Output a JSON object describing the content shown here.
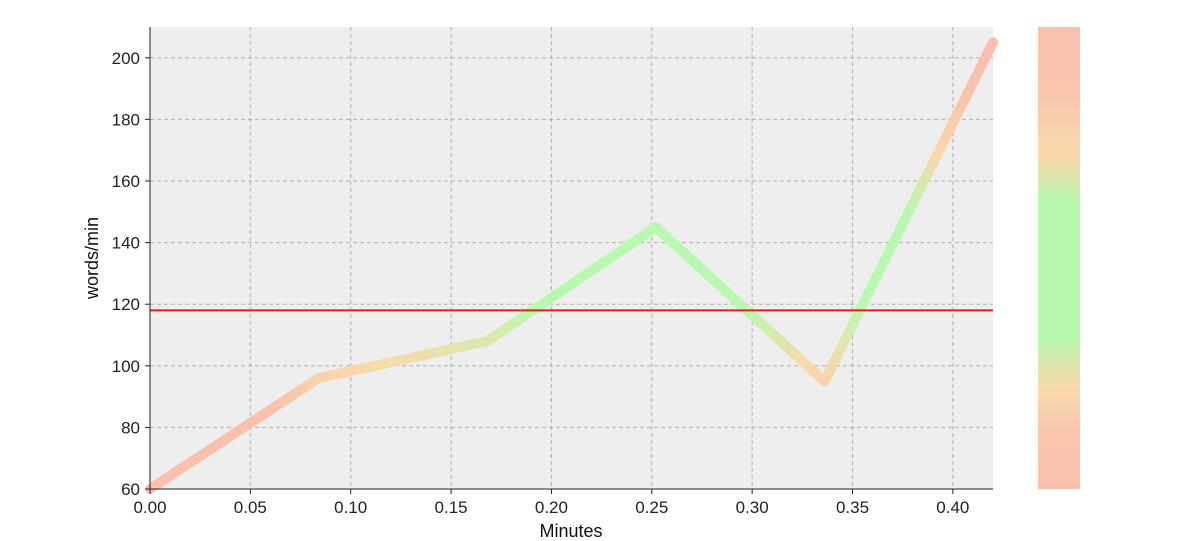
{
  "chart_data": {
    "type": "line",
    "title": "",
    "xlabel": "Minutes",
    "ylabel": "words/min",
    "xlim": [
      0.0,
      0.42
    ],
    "ylim": [
      60,
      210
    ],
    "xticks": [
      0.0,
      0.05,
      0.1,
      0.15,
      0.2,
      0.25,
      0.3,
      0.35,
      0.4
    ],
    "xtick_labels": [
      "0.00",
      "0.05",
      "0.10",
      "0.15",
      "0.20",
      "0.25",
      "0.30",
      "0.35",
      "0.40"
    ],
    "yticks": [
      60,
      80,
      100,
      120,
      140,
      160,
      180,
      200
    ],
    "ytick_labels": [
      "60",
      "80",
      "100",
      "120",
      "140",
      "160",
      "180",
      "200"
    ],
    "grid": true,
    "series": [
      {
        "x": [
          0.0,
          0.084,
          0.168,
          0.252,
          0.336,
          0.42
        ],
        "values": [
          60,
          96,
          108,
          145,
          95,
          205
        ]
      }
    ],
    "reference_line": {
      "y": 118,
      "color": "#e02020"
    },
    "colorbar": true,
    "colors": {
      "background": "#eeeeee",
      "grid": "#b0b0b0",
      "red": "#f9c0ae",
      "orange": "#f9d9ab",
      "green": "#b8f9b0"
    }
  }
}
